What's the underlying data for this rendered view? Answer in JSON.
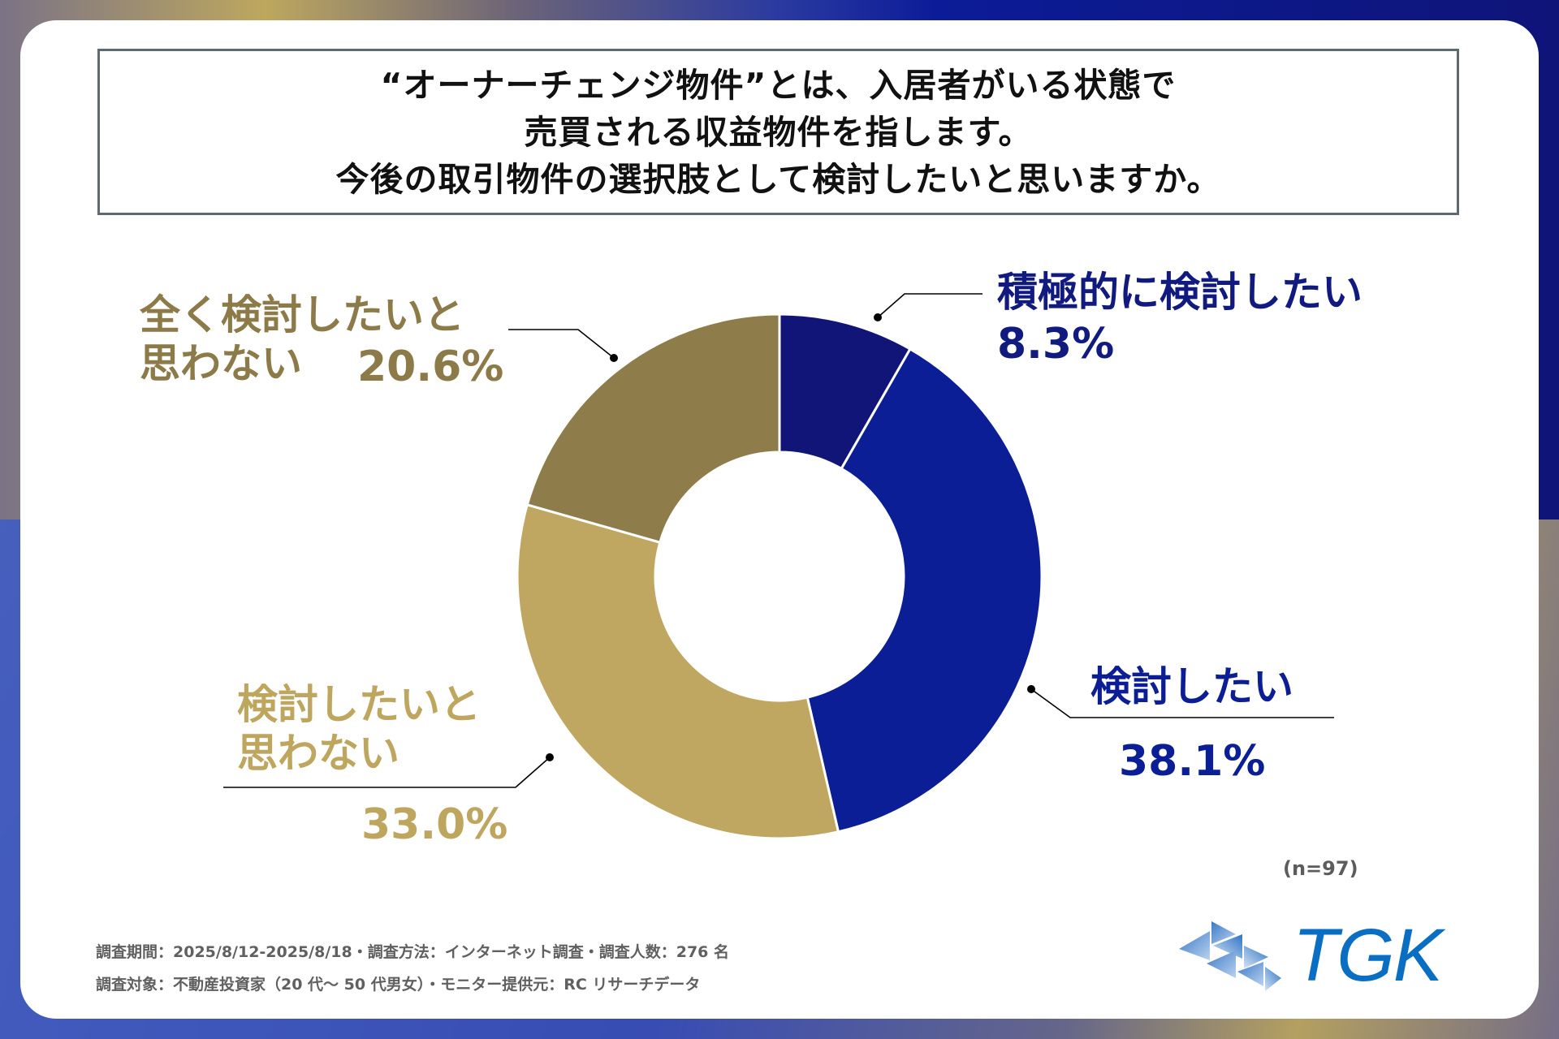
{
  "question": {
    "lines": [
      "“オーナーチェンジ物件”とは、入居者がいる状態で",
      "売買される収益物件を指します。",
      "今後の取引物件の選択肢として検討したいと思いますか。"
    ]
  },
  "chart_data": {
    "type": "pie",
    "variant": "donut",
    "title": "“オーナーチェンジ物件”とは、入居者がいる状態で売買される収益物件を指します。今後の取引物件の選択肢として検討したいと思いますか。",
    "categories": [
      "積極的に検討したい",
      "検討したい",
      "検討したいと思わない",
      "全く検討したいと思わない"
    ],
    "values": [
      8.3,
      38.1,
      33.0,
      20.6
    ],
    "unit": "%",
    "colors": [
      "#111577",
      "#0b1e96",
      "#bfa762",
      "#8e7d4a"
    ],
    "value_labels": [
      "8.3%",
      "38.1%",
      "33.0%",
      "20.6%"
    ],
    "sample_size": "(n=97)"
  },
  "labels": {
    "strongly_consider": {
      "line1": "積極的に検討したい",
      "value": "8.3%"
    },
    "consider": {
      "line1": "検討したい",
      "value": "38.1%"
    },
    "not_consider": {
      "line1": "検討したいと",
      "line2": "思わない",
      "value": "33.0%"
    },
    "not_at_all": {
      "line1": "全く検討したいと",
      "line2": "思わない",
      "value": "20.6%"
    }
  },
  "footer": {
    "line1": "調査期間：2025/8/12-2025/8/18・調査方法：インターネット調査・調査人数：276 名",
    "line2": "調査対象：不動産投資家（20 代～ 50 代男女）・モニター提供元：RC リサーチデータ"
  },
  "logo": {
    "text": "TGK",
    "icon": "tgk-triangle-mosaic-icon",
    "color": "#0a6fc2"
  }
}
